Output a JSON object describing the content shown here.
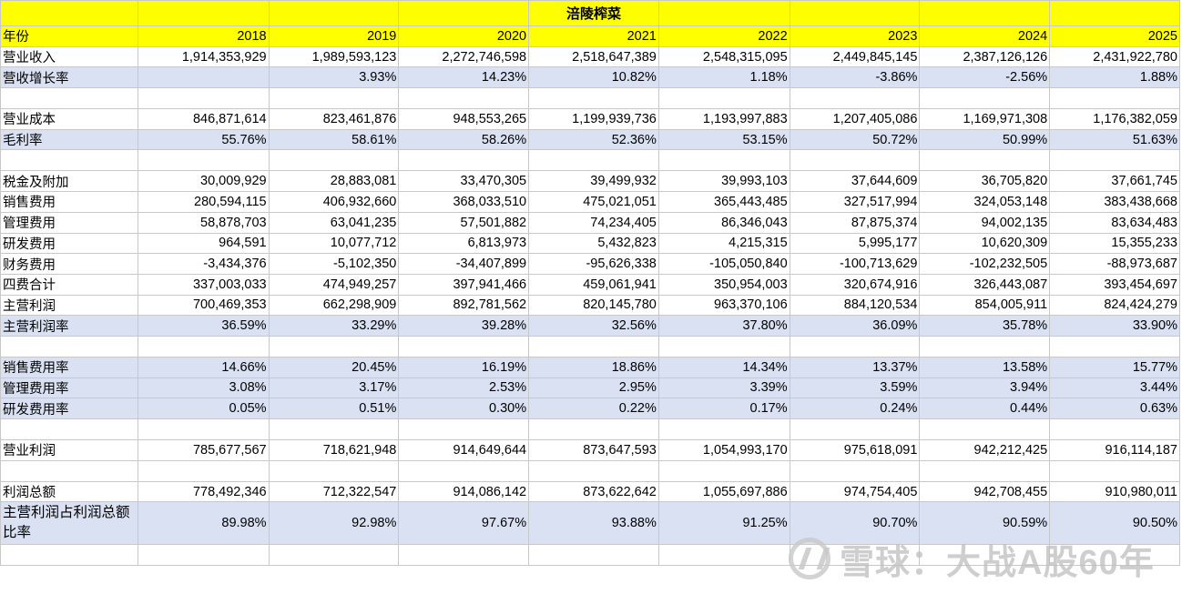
{
  "sheet": {
    "title": "涪陵榨菜",
    "year_label": "年份",
    "years": [
      "2018",
      "2019",
      "2020",
      "2021",
      "2022",
      "2023",
      "2024",
      "2025"
    ],
    "rows": [
      {
        "label": "营业收入",
        "shaded": false,
        "values": [
          "1,914,353,929",
          "1,989,593,123",
          "2,272,746,598",
          "2,518,647,389",
          "2,548,315,095",
          "2,449,845,145",
          "2,387,126,126",
          "2,431,922,780"
        ]
      },
      {
        "label": "营收增长率",
        "shaded": true,
        "values": [
          "",
          "3.93%",
          "14.23%",
          "10.82%",
          "1.18%",
          "-3.86%",
          "-2.56%",
          "1.88%"
        ]
      },
      {
        "blank": true
      },
      {
        "label": "营业成本",
        "shaded": false,
        "values": [
          "846,871,614",
          "823,461,876",
          "948,553,265",
          "1,199,939,736",
          "1,193,997,883",
          "1,207,405,086",
          "1,169,971,308",
          "1,176,382,059"
        ]
      },
      {
        "label": "毛利率",
        "shaded": true,
        "values": [
          "55.76%",
          "58.61%",
          "58.26%",
          "52.36%",
          "53.15%",
          "50.72%",
          "50.99%",
          "51.63%"
        ]
      },
      {
        "blank": true
      },
      {
        "label": "税金及附加",
        "shaded": false,
        "values": [
          "30,009,929",
          "28,883,081",
          "33,470,305",
          "39,499,932",
          "39,993,103",
          "37,644,609",
          "36,705,820",
          "37,661,745"
        ]
      },
      {
        "label": "销售费用",
        "shaded": false,
        "values": [
          "280,594,115",
          "406,932,660",
          "368,033,510",
          "475,021,051",
          "365,443,485",
          "327,517,994",
          "324,053,148",
          "383,438,668"
        ]
      },
      {
        "label": "管理费用",
        "shaded": false,
        "values": [
          "58,878,703",
          "63,041,235",
          "57,501,882",
          "74,234,405",
          "86,346,043",
          "87,875,374",
          "94,002,135",
          "83,634,483"
        ]
      },
      {
        "label": "研发费用",
        "shaded": false,
        "values": [
          "964,591",
          "10,077,712",
          "6,813,973",
          "5,432,823",
          "4,215,315",
          "5,995,177",
          "10,620,309",
          "15,355,233"
        ]
      },
      {
        "label": "财务费用",
        "shaded": false,
        "values": [
          "-3,434,376",
          "-5,102,350",
          "-34,407,899",
          "-95,626,338",
          "-105,050,840",
          "-100,713,629",
          "-102,232,505",
          "-88,973,687"
        ]
      },
      {
        "label": "四费合计",
        "shaded": false,
        "values": [
          "337,003,033",
          "474,949,257",
          "397,941,466",
          "459,061,941",
          "350,954,003",
          "320,674,916",
          "326,443,087",
          "393,454,697"
        ]
      },
      {
        "label": "主营利润",
        "shaded": false,
        "values": [
          "700,469,353",
          "662,298,909",
          "892,781,562",
          "820,145,780",
          "963,370,106",
          "884,120,534",
          "854,005,911",
          "824,424,279"
        ]
      },
      {
        "label": "主营利润率",
        "shaded": true,
        "values": [
          "36.59%",
          "33.29%",
          "39.28%",
          "32.56%",
          "37.80%",
          "36.09%",
          "35.78%",
          "33.90%"
        ]
      },
      {
        "blank": true
      },
      {
        "label": "销售费用率",
        "shaded": true,
        "values": [
          "14.66%",
          "20.45%",
          "16.19%",
          "18.86%",
          "14.34%",
          "13.37%",
          "13.58%",
          "15.77%"
        ]
      },
      {
        "label": "管理费用率",
        "shaded": true,
        "values": [
          "3.08%",
          "3.17%",
          "2.53%",
          "2.95%",
          "3.39%",
          "3.59%",
          "3.94%",
          "3.44%"
        ]
      },
      {
        "label": "研发费用率",
        "shaded": true,
        "values": [
          "0.05%",
          "0.51%",
          "0.30%",
          "0.22%",
          "0.17%",
          "0.24%",
          "0.44%",
          "0.63%"
        ]
      },
      {
        "blank": true
      },
      {
        "label": "营业利润",
        "shaded": false,
        "values": [
          "785,677,567",
          "718,621,948",
          "914,649,644",
          "873,647,593",
          "1,054,993,170",
          "975,618,091",
          "942,212,425",
          "916,114,187"
        ]
      },
      {
        "blank": true
      },
      {
        "label": "利润总额",
        "shaded": false,
        "values": [
          "778,492,346",
          "712,322,547",
          "914,086,142",
          "873,622,642",
          "1,055,697,886",
          "974,754,405",
          "942,708,455",
          "910,980,011"
        ]
      },
      {
        "label": "主营利润占利润总额比率",
        "shaded": true,
        "tall": true,
        "values": [
          "89.98%",
          "92.98%",
          "97.67%",
          "93.88%",
          "91.25%",
          "90.70%",
          "90.59%",
          "90.50%"
        ]
      },
      {
        "blank": true
      }
    ]
  },
  "watermark": {
    "text": "雪球：大战A股60年",
    "icon": "xueqiu-logo-icon"
  }
}
